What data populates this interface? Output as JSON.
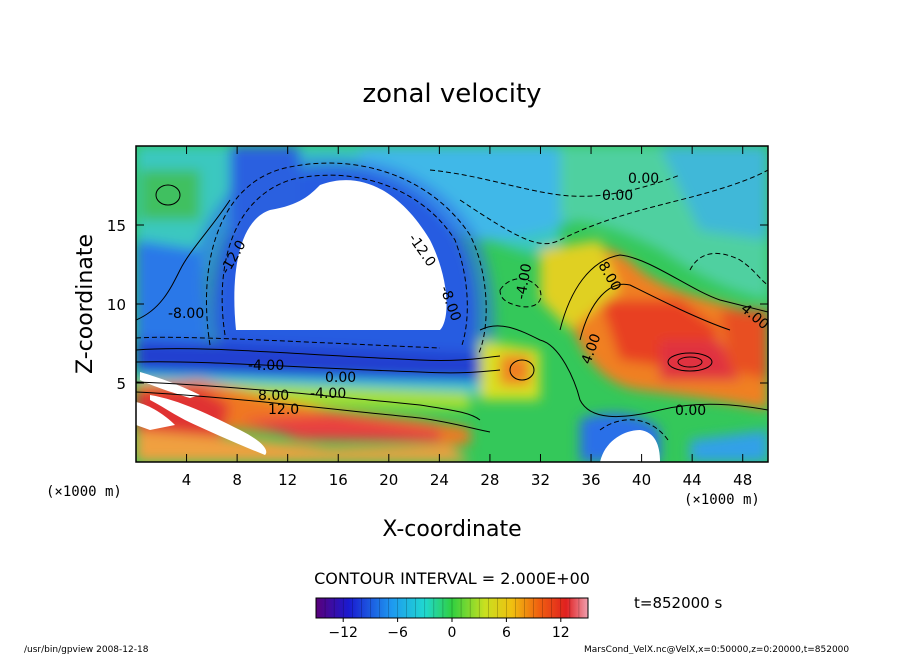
{
  "chart_data": {
    "type": "heatmap",
    "title": "zonal velocity",
    "xlabel": "X-coordinate",
    "ylabel": "Z-coordinate",
    "x_unit_label": "(×1000 m)",
    "y_unit_label": "(×1000 m)",
    "xlim": [
      0,
      50
    ],
    "ylim": [
      0,
      20
    ],
    "x_ticks": [
      "4",
      "8",
      "12",
      "16",
      "20",
      "24",
      "28",
      "32",
      "36",
      "40",
      "44",
      "48"
    ],
    "y_ticks": [
      "5",
      "10",
      "15"
    ],
    "colorbar": {
      "range": [
        -15,
        15
      ],
      "tick_labels": [
        "−12",
        "−6",
        "0",
        "6",
        "12"
      ],
      "tick_values": [
        -12,
        -6,
        0,
        6,
        12
      ]
    },
    "contour_interval_text": "CONTOUR INTERVAL = 2.000E+00",
    "contour_labels": [
      "0.00",
      "-12.0",
      "-12.0",
      "-8.00",
      "-4.00",
      "-8.00",
      "-4.00",
      "0.00",
      "-4.00",
      "8.00",
      "12.0",
      "4.00",
      "8.00",
      "4.00",
      "0.00",
      "0.00"
    ],
    "grid": false
  },
  "annotations": {
    "time": "t=852000 s",
    "footer_left": "/usr/bin/gpview  2008-12-18",
    "footer_right": "MarsCond_VelX.nc@VelX,x=0:50000,z=0:20000,t=852000"
  }
}
